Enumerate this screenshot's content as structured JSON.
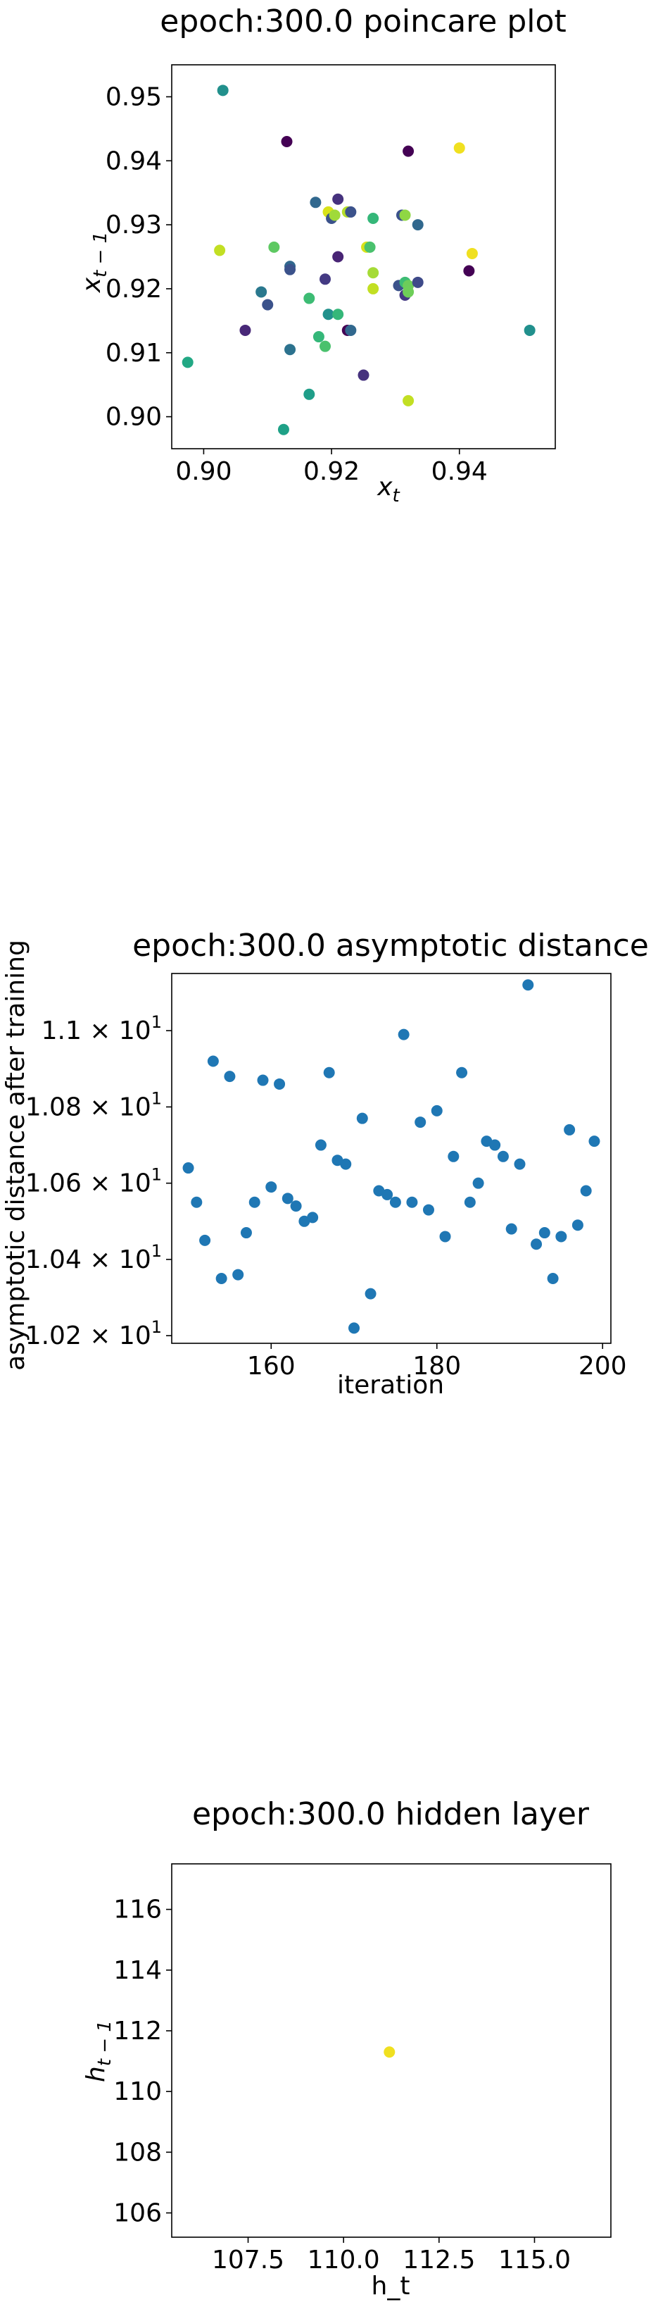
{
  "chart_data": [
    {
      "type": "scatter",
      "title": "epoch:300.0 poincare plot",
      "xlabel": "x_t",
      "ylabel": "x_{t-1}",
      "xlim": [
        0.895,
        0.955
      ],
      "ylim": [
        0.895,
        0.955
      ],
      "xticks": [
        0.9,
        0.92,
        0.94
      ],
      "xtick_labels": [
        "0.90",
        "0.92",
        "0.94"
      ],
      "yticks": [
        0.9,
        0.91,
        0.92,
        0.93,
        0.94,
        0.95
      ],
      "ytick_labels": [
        "0.90",
        "0.91",
        "0.92",
        "0.93",
        "0.94",
        "0.95"
      ],
      "colormap": "viridis",
      "points": [
        {
          "x": 0.903,
          "y": 0.951,
          "c": "#22908c"
        },
        {
          "x": 0.913,
          "y": 0.943,
          "c": "#440154"
        },
        {
          "x": 0.932,
          "y": 0.9415,
          "c": "#440154"
        },
        {
          "x": 0.94,
          "y": 0.942,
          "c": "#f0e020"
        },
        {
          "x": 0.921,
          "y": 0.934,
          "c": "#46327e"
        },
        {
          "x": 0.9175,
          "y": 0.9335,
          "c": "#31688e"
        },
        {
          "x": 0.9225,
          "y": 0.932,
          "c": "#b5de2b"
        },
        {
          "x": 0.923,
          "y": 0.932,
          "c": "#3b528b"
        },
        {
          "x": 0.9195,
          "y": 0.932,
          "c": "#d8e219"
        },
        {
          "x": 0.92,
          "y": 0.931,
          "c": "#3b528b"
        },
        {
          "x": 0.9205,
          "y": 0.9315,
          "c": "#a0da39"
        },
        {
          "x": 0.9265,
          "y": 0.931,
          "c": "#35b779"
        },
        {
          "x": 0.931,
          "y": 0.9315,
          "c": "#3b528b"
        },
        {
          "x": 0.9315,
          "y": 0.9315,
          "c": "#8fd744"
        },
        {
          "x": 0.9335,
          "y": 0.93,
          "c": "#31688e"
        },
        {
          "x": 0.9135,
          "y": 0.9235,
          "c": "#31688e"
        },
        {
          "x": 0.9135,
          "y": 0.923,
          "c": "#3b528b"
        },
        {
          "x": 0.9025,
          "y": 0.926,
          "c": "#c2df23"
        },
        {
          "x": 0.911,
          "y": 0.9265,
          "c": "#5ec962"
        },
        {
          "x": 0.9255,
          "y": 0.9265,
          "c": "#d8e219"
        },
        {
          "x": 0.926,
          "y": 0.9265,
          "c": "#4ac16d"
        },
        {
          "x": 0.921,
          "y": 0.925,
          "c": "#482475"
        },
        {
          "x": 0.9265,
          "y": 0.9225,
          "c": "#a5db36"
        },
        {
          "x": 0.919,
          "y": 0.9215,
          "c": "#443a83"
        },
        {
          "x": 0.942,
          "y": 0.9255,
          "c": "#f0e020"
        },
        {
          "x": 0.9415,
          "y": 0.9228,
          "c": "#440154"
        },
        {
          "x": 0.9305,
          "y": 0.9205,
          "c": "#3b528b"
        },
        {
          "x": 0.9315,
          "y": 0.921,
          "c": "#3dbc74"
        },
        {
          "x": 0.932,
          "y": 0.9205,
          "c": "#6ccd5a"
        },
        {
          "x": 0.9335,
          "y": 0.921,
          "c": "#3e4a89"
        },
        {
          "x": 0.9315,
          "y": 0.919,
          "c": "#443983"
        },
        {
          "x": 0.932,
          "y": 0.9195,
          "c": "#6ece58"
        },
        {
          "x": 0.9265,
          "y": 0.92,
          "c": "#c2df23"
        },
        {
          "x": 0.909,
          "y": 0.9195,
          "c": "#2a788e"
        },
        {
          "x": 0.91,
          "y": 0.9175,
          "c": "#3b528b"
        },
        {
          "x": 0.9165,
          "y": 0.9185,
          "c": "#3dbc74"
        },
        {
          "x": 0.9195,
          "y": 0.916,
          "c": "#21918c"
        },
        {
          "x": 0.921,
          "y": 0.916,
          "c": "#35b779"
        },
        {
          "x": 0.9065,
          "y": 0.9135,
          "c": "#482878"
        },
        {
          "x": 0.9225,
          "y": 0.9135,
          "c": "#440154"
        },
        {
          "x": 0.923,
          "y": 0.9135,
          "c": "#31688e"
        },
        {
          "x": 0.918,
          "y": 0.9125,
          "c": "#35b779"
        },
        {
          "x": 0.9135,
          "y": 0.9105,
          "c": "#2c728e"
        },
        {
          "x": 0.919,
          "y": 0.911,
          "c": "#4ac16d"
        },
        {
          "x": 0.951,
          "y": 0.9135,
          "c": "#21908d"
        },
        {
          "x": 0.8975,
          "y": 0.9085,
          "c": "#22a884"
        },
        {
          "x": 0.9165,
          "y": 0.9035,
          "c": "#1f9e89"
        },
        {
          "x": 0.925,
          "y": 0.9065,
          "c": "#46327e"
        },
        {
          "x": 0.932,
          "y": 0.9025,
          "c": "#c2df23"
        },
        {
          "x": 0.9125,
          "y": 0.898,
          "c": "#1fa187"
        }
      ]
    },
    {
      "type": "scatter",
      "title": "epoch:300.0 asymptotic distance",
      "xlabel": "iteration",
      "ylabel": "asymptotic distance after training",
      "xlim": [
        148,
        201
      ],
      "ylim": [
        10.18,
        11.15
      ],
      "xticks": [
        160,
        180,
        200
      ],
      "xtick_labels": [
        "160",
        "180",
        "200"
      ],
      "yticks": [
        10.2,
        10.4,
        10.6,
        10.8,
        11.0
      ],
      "ytick_labels": [
        {
          "mant": "1.02",
          "exp": "1"
        },
        {
          "mant": "1.04",
          "exp": "1"
        },
        {
          "mant": "1.06",
          "exp": "1"
        },
        {
          "mant": "1.08",
          "exp": "1"
        },
        {
          "mant": "1.1",
          "exp": "1"
        }
      ],
      "color": "#1f77b4",
      "x": [
        150,
        151,
        152,
        153,
        154,
        155,
        156,
        157,
        158,
        159,
        160,
        161,
        162,
        163,
        164,
        165,
        166,
        167,
        168,
        169,
        170,
        171,
        172,
        173,
        174,
        175,
        176,
        177,
        178,
        179,
        180,
        181,
        182,
        183,
        184,
        185,
        186,
        187,
        188,
        189,
        190,
        191,
        192,
        193,
        194,
        195,
        196,
        197,
        198,
        199
      ],
      "y": [
        10.64,
        10.55,
        10.45,
        10.92,
        10.35,
        10.88,
        10.36,
        10.47,
        10.55,
        10.87,
        10.59,
        10.86,
        10.56,
        10.54,
        10.5,
        10.51,
        10.7,
        10.89,
        10.66,
        10.65,
        10.22,
        10.77,
        10.31,
        10.58,
        10.57,
        10.55,
        10.99,
        10.55,
        10.76,
        10.53,
        10.79,
        10.46,
        10.67,
        10.89,
        10.55,
        10.6,
        10.71,
        10.7,
        10.67,
        10.48,
        10.65,
        11.12,
        10.44,
        10.47,
        10.35,
        10.46,
        10.74,
        10.49,
        10.58,
        10.71
      ]
    },
    {
      "type": "scatter",
      "title": "epoch:300.0 hidden layer",
      "xlabel": "h_t",
      "ylabel": "h_{t-1}",
      "xlim": [
        105.5,
        117.0
      ],
      "ylim": [
        105.2,
        117.5
      ],
      "xticks": [
        107.5,
        110.0,
        112.5,
        115.0
      ],
      "xtick_labels": [
        "107.5",
        "110.0",
        "112.5",
        "115.0"
      ],
      "yticks": [
        106,
        108,
        110,
        112,
        114,
        116
      ],
      "ytick_labels": [
        "106",
        "108",
        "110",
        "112",
        "114",
        "116"
      ],
      "color": "#f0e020",
      "points": [
        {
          "x": 111.2,
          "y": 111.3
        }
      ]
    }
  ]
}
